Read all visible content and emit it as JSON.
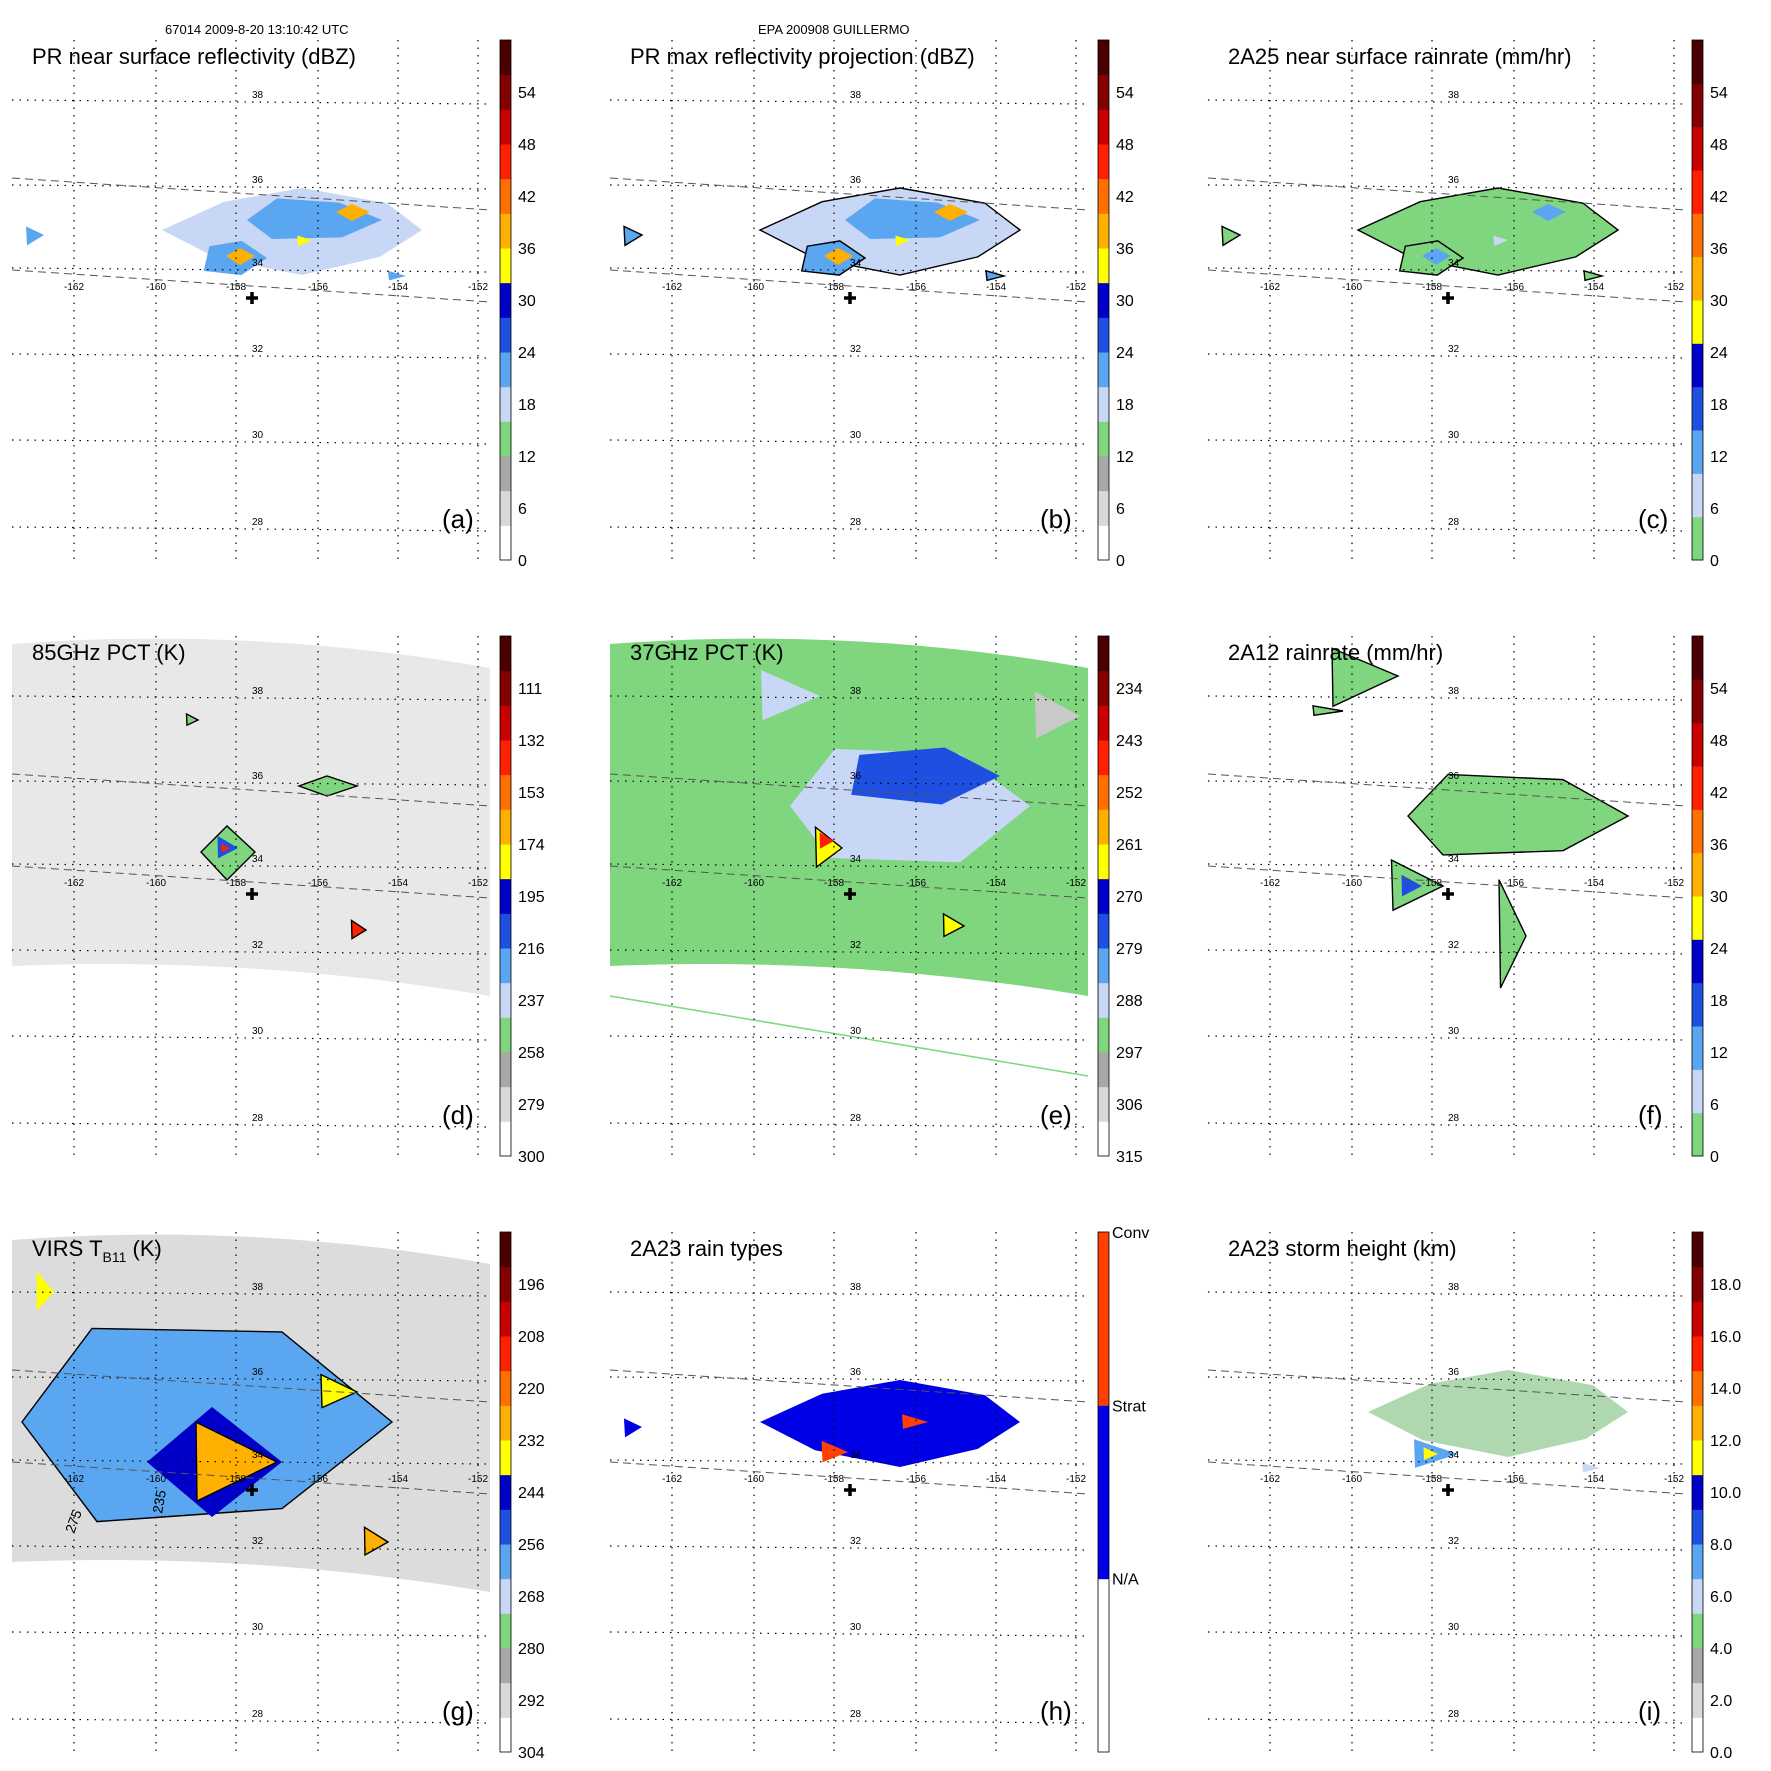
{
  "header": {
    "left": "67014 2009-8-20 13:10:42 UTC",
    "center": "EPA 200908 GUILLERMO"
  },
  "grid": {
    "lon_labels": [
      "-162",
      "-160",
      "-158",
      "-156",
      "-154",
      "-152"
    ],
    "lat_labels": [
      "38",
      "36",
      "34",
      "32",
      "30",
      "28"
    ]
  },
  "colors": {
    "paper": "#ffffff",
    "grid": "#000000",
    "swath": "#555555",
    "center_cross": "#000000"
  },
  "panels": [
    {
      "id": "a",
      "title": "PR near surface reflectivity (dBZ)",
      "letter": "(a)",
      "map": "pr",
      "colorbar": {
        "ticks": [
          "0",
          "6",
          "12",
          "18",
          "24",
          "30",
          "36",
          "42",
          "48",
          "54"
        ],
        "colors": [
          "#ffffff",
          "#d9d9d9",
          "#a8a8a8",
          "#7fd67f",
          "#c8d7f5",
          "#5aa6f0",
          "#1f4fe0",
          "#0000c8",
          "#ffff00",
          "#ffb000",
          "#ff7000",
          "#ff2000",
          "#c80000",
          "#820000",
          "#4a0000"
        ]
      }
    },
    {
      "id": "b",
      "title": "PR max reflectivity projection (dBZ)",
      "letter": "(b)",
      "map": "pr",
      "colorbar": {
        "ticks": [
          "0",
          "6",
          "12",
          "18",
          "24",
          "30",
          "36",
          "42",
          "48",
          "54"
        ],
        "colors": [
          "#ffffff",
          "#d9d9d9",
          "#a8a8a8",
          "#7fd67f",
          "#c8d7f5",
          "#5aa6f0",
          "#1f4fe0",
          "#0000c8",
          "#ffff00",
          "#ffb000",
          "#ff7000",
          "#ff2000",
          "#c80000",
          "#820000",
          "#4a0000"
        ]
      }
    },
    {
      "id": "c",
      "title": "2A25 near surface rainrate (mm/hr)",
      "letter": "(c)",
      "map": "pr",
      "colorbar": {
        "ticks": [
          "0",
          "6",
          "12",
          "18",
          "24",
          "30",
          "36",
          "42",
          "48",
          "54"
        ],
        "colors": [
          "#7fd67f",
          "#c8d7f5",
          "#5aa6f0",
          "#1f4fe0",
          "#0000c8",
          "#ffff00",
          "#ffb000",
          "#ff7000",
          "#ff2000",
          "#c80000",
          "#820000",
          "#4a0000"
        ]
      }
    },
    {
      "id": "d",
      "title": "85GHz PCT (K)",
      "letter": "(d)",
      "map": "pct85",
      "colorbar": {
        "ticks": [
          "300",
          "279",
          "258",
          "237",
          "216",
          "195",
          "174",
          "153",
          "132",
          "111"
        ],
        "colors": [
          "#ffffff",
          "#d9d9d9",
          "#a8a8a8",
          "#7fd67f",
          "#c8d7f5",
          "#5aa6f0",
          "#1f4fe0",
          "#0000c8",
          "#ffff00",
          "#ffb000",
          "#ff7000",
          "#ff2000",
          "#c80000",
          "#820000",
          "#4a0000"
        ]
      }
    },
    {
      "id": "e",
      "title": "37GHz PCT (K)",
      "letter": "(e)",
      "map": "pct37",
      "colorbar": {
        "ticks": [
          "315",
          "306",
          "297",
          "288",
          "279",
          "270",
          "261",
          "252",
          "243",
          "234"
        ],
        "colors": [
          "#ffffff",
          "#d9d9d9",
          "#a8a8a8",
          "#7fd67f",
          "#c8d7f5",
          "#5aa6f0",
          "#1f4fe0",
          "#0000c8",
          "#ffff00",
          "#ffb000",
          "#ff7000",
          "#ff2000",
          "#c80000",
          "#820000",
          "#4a0000"
        ]
      }
    },
    {
      "id": "f",
      "title": "2A12 rainrate (mm/hr)",
      "letter": "(f)",
      "map": "rain12",
      "colorbar": {
        "ticks": [
          "0",
          "6",
          "12",
          "18",
          "24",
          "30",
          "36",
          "42",
          "48",
          "54"
        ],
        "colors": [
          "#7fd67f",
          "#c8d7f5",
          "#5aa6f0",
          "#1f4fe0",
          "#0000c8",
          "#ffff00",
          "#ffb000",
          "#ff7000",
          "#ff2000",
          "#c80000",
          "#820000",
          "#4a0000"
        ]
      }
    },
    {
      "id": "g",
      "title": "VIRS T",
      "title_sub": "B11",
      "title_tail": " (K)",
      "letter": "(g)",
      "map": "virs",
      "contour_labels": [
        "275",
        "235"
      ],
      "colorbar": {
        "ticks": [
          "304",
          "292",
          "280",
          "268",
          "256",
          "244",
          "232",
          "220",
          "208",
          "196"
        ],
        "colors": [
          "#ffffff",
          "#d9d9d9",
          "#a8a8a8",
          "#7fd67f",
          "#c8d7f5",
          "#5aa6f0",
          "#1f4fe0",
          "#0000c8",
          "#ffff00",
          "#ffb000",
          "#ff7000",
          "#ff2000",
          "#c80000",
          "#820000",
          "#4a0000"
        ]
      }
    },
    {
      "id": "h",
      "title": "2A23 rain types",
      "letter": "(h)",
      "map": "types",
      "colorbar_categories": [
        "N/A",
        "Strat",
        "Conv"
      ],
      "category_colors": [
        "#ffffff",
        "#0000e6",
        "#ff4000"
      ]
    },
    {
      "id": "i",
      "title": "2A23 storm height (km)",
      "letter": "(i)",
      "map": "height",
      "colorbar": {
        "ticks": [
          "0.0",
          "2.0",
          "4.0",
          "6.0",
          "8.0",
          "10.0",
          "12.0",
          "14.0",
          "16.0",
          "18.0"
        ],
        "colors": [
          "#ffffff",
          "#d9d9d9",
          "#a8a8a8",
          "#7fd67f",
          "#c8d7f5",
          "#5aa6f0",
          "#1f4fe0",
          "#0000c8",
          "#ffff00",
          "#ffb000",
          "#ff7000",
          "#ff2000",
          "#c80000",
          "#820000",
          "#4a0000"
        ]
      }
    }
  ]
}
